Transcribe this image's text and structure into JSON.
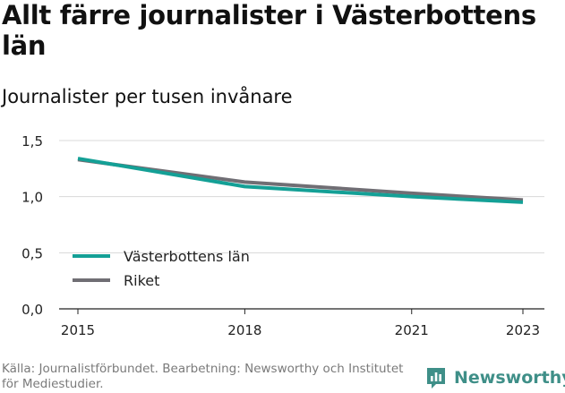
{
  "header": {
    "title": "Allt färre journalister i Västerbottens län",
    "subtitle": "Journalister per tusen invånare"
  },
  "footer": {
    "source": "Källa: Journalistförbundet. Bearbetning: Newsworthy och Institutet för Mediestudier.",
    "brand": "Newsworthy"
  },
  "chart_data": {
    "type": "line",
    "x": [
      2015,
      2018,
      2021,
      2023
    ],
    "xticks": [
      "2015",
      "2018",
      "2021",
      "2023"
    ],
    "yticks": [
      {
        "value": 0.0,
        "label": "0,0"
      },
      {
        "value": 0.5,
        "label": "0,5"
      },
      {
        "value": 1.0,
        "label": "1,0"
      },
      {
        "value": 1.5,
        "label": "1,5"
      }
    ],
    "ylim": [
      0,
      1.5
    ],
    "xlim": [
      2015,
      2023
    ],
    "grid": true,
    "legend": "bottom-left",
    "series": [
      {
        "name": "Västerbottens län",
        "color": "#14a096",
        "values": [
          1.34,
          1.09,
          1.0,
          0.95
        ]
      },
      {
        "name": "Riket",
        "color": "#706e74",
        "values": [
          1.33,
          1.13,
          1.03,
          0.97
        ]
      }
    ]
  }
}
